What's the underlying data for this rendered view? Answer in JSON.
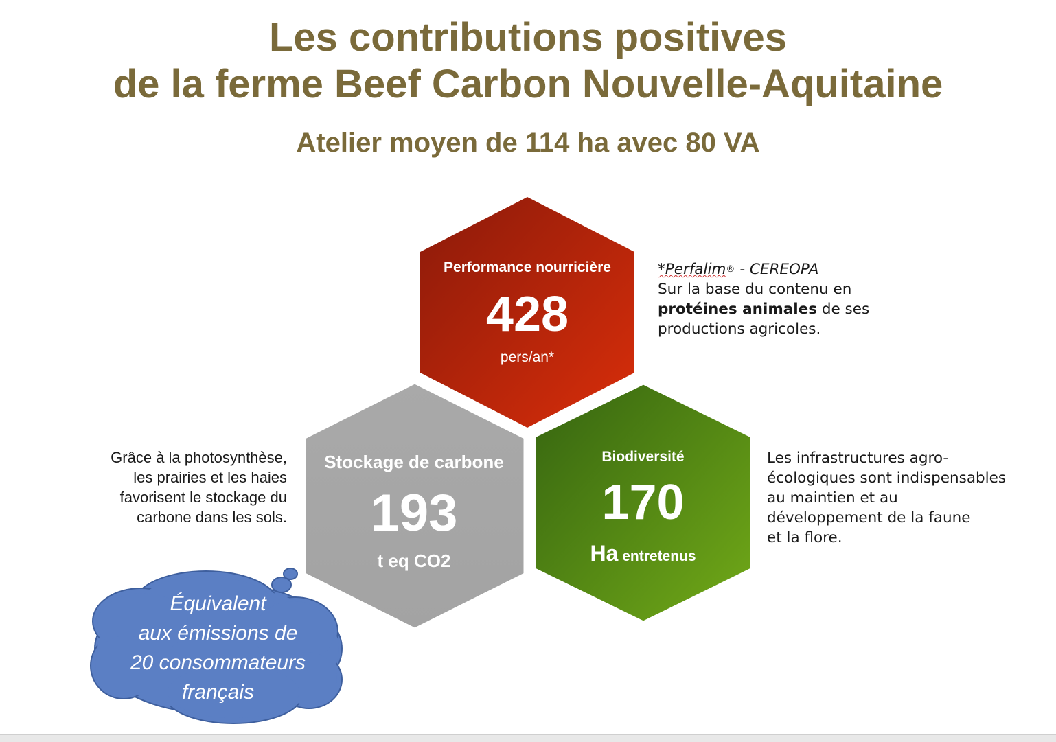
{
  "title": {
    "line1": "Les contributions positives",
    "line2": "de la ferme Beef Carbon Nouvelle-Aquitaine",
    "subtitle": "Atelier moyen de 114 ha avec 80 VA"
  },
  "hexagons": {
    "food": {
      "label": "Performance nourricière",
      "value": "428",
      "unit": "pers/an*",
      "color_top": "#8b1a0a",
      "color_bottom": "#d42a0a"
    },
    "carbon": {
      "label": "Stockage de carbone",
      "value": "193",
      "unit": "t eq CO2",
      "color": "#a6a6a6"
    },
    "biodiversity": {
      "label": "Biodiversité",
      "value": "170",
      "unit_main": "Ha",
      "unit_rest": "entretenus",
      "color_top": "#3d6e14",
      "color_bottom": "#6ea416"
    }
  },
  "notes": {
    "food": {
      "source": "*Perfalim",
      "source_mark": "®",
      "source_rest": " - CEREOPA",
      "line1": "Sur la base du contenu en",
      "bold": "protéines animales",
      "line2_rest": " de ses",
      "line3": "productions agricoles."
    },
    "carbon": {
      "line1": "Grâce à la photosynthèse,",
      "line2": "les prairies et les haies",
      "line3": "favorisent le stockage du",
      "line4": "carbone dans les sols."
    },
    "biodiversity": {
      "line1": "Les infrastructures agro-",
      "line2": "écologiques sont indispensables",
      "line3": "au maintien et au",
      "line4": "développement de la faune",
      "line5": "et la flore."
    }
  },
  "cloud": {
    "line1": "Équivalent",
    "line2": "aux émissions de",
    "line3": "20 consommateurs",
    "line4": "français",
    "color": "#5b7fc4"
  }
}
